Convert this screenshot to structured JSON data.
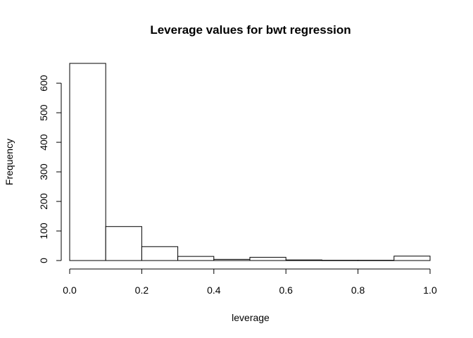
{
  "chart_data": {
    "type": "bar",
    "title": "Leverage values for bwt regression",
    "xlabel": "leverage",
    "ylabel": "Frequency",
    "bins": [
      {
        "from": 0.0,
        "to": 0.1,
        "count": 667
      },
      {
        "from": 0.1,
        "to": 0.2,
        "count": 115
      },
      {
        "from": 0.2,
        "to": 0.3,
        "count": 47
      },
      {
        "from": 0.3,
        "to": 0.4,
        "count": 14
      },
      {
        "from": 0.4,
        "to": 0.5,
        "count": 4
      },
      {
        "from": 0.5,
        "to": 0.6,
        "count": 11
      },
      {
        "from": 0.6,
        "to": 0.7,
        "count": 2
      },
      {
        "from": 0.7,
        "to": 0.8,
        "count": 1
      },
      {
        "from": 0.8,
        "to": 0.9,
        "count": 1
      },
      {
        "from": 0.9,
        "to": 1.0,
        "count": 15
      }
    ],
    "xlim": [
      0.0,
      1.0
    ],
    "ylim": [
      0,
      667
    ],
    "x_ticks": [
      "0.0",
      "0.2",
      "0.4",
      "0.6",
      "0.8",
      "1.0"
    ],
    "y_ticks": [
      "0",
      "100",
      "200",
      "300",
      "400",
      "500",
      "600"
    ],
    "grid": false,
    "legend": "none"
  }
}
